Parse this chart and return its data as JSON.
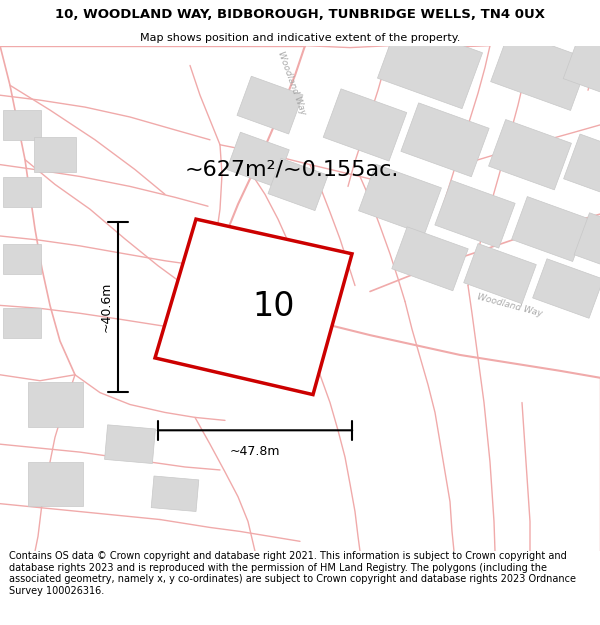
{
  "title_line1": "10, WOODLAND WAY, BIDBOROUGH, TUNBRIDGE WELLS, TN4 0UX",
  "title_line2": "Map shows position and indicative extent of the property.",
  "area_text": "~627m²/~0.155ac.",
  "label_number": "10",
  "dim_width": "~47.8m",
  "dim_height": "~40.6m",
  "footer_text": "Contains OS data © Crown copyright and database right 2021. This information is subject to Crown copyright and database rights 2023 and is reproduced with the permission of HM Land Registry. The polygons (including the associated geometry, namely x, y co-ordinates) are subject to Crown copyright and database rights 2023 Ordnance Survey 100026316.",
  "bg_color": "#ffffff",
  "road_color": "#f0aaaa",
  "building_fill": "#d8d8d8",
  "building_edge": "#c8c8c8",
  "plot_color": "#cc0000",
  "title_fontsize": 9.5,
  "subtitle_fontsize": 8.0,
  "footer_fontsize": 7.0,
  "area_fontsize": 16,
  "number_fontsize": 24,
  "dim_fontsize": 9
}
